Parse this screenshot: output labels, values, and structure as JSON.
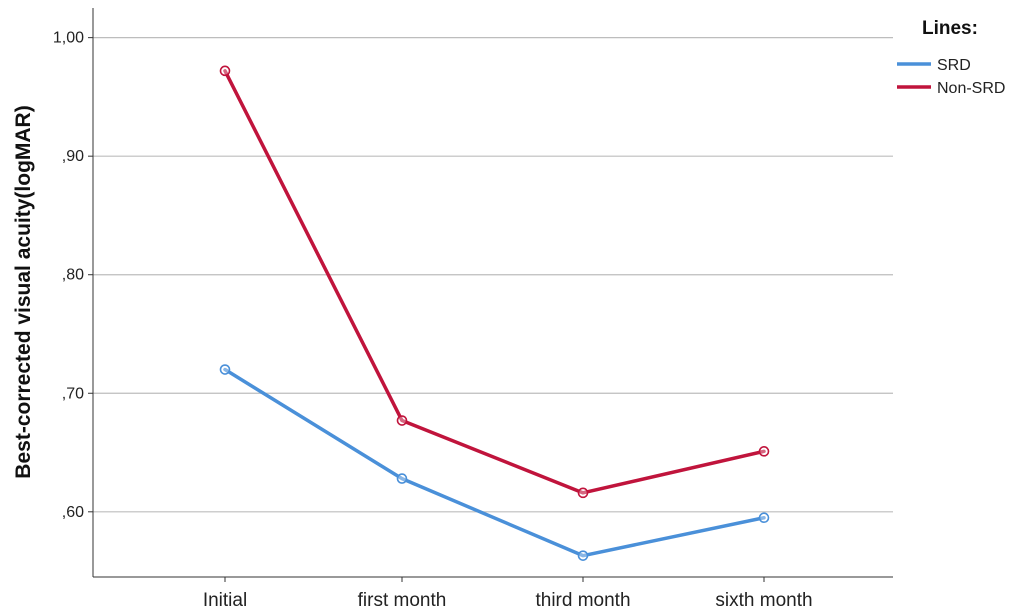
{
  "chart_data": {
    "type": "line",
    "categories": [
      "Initial",
      "first month",
      "third month",
      "sixth month"
    ],
    "series": [
      {
        "name": "SRD",
        "color": "#4a90d9",
        "values": [
          0.72,
          0.628,
          0.563,
          0.595
        ]
      },
      {
        "name": "Non-SRD",
        "color": "#c0143c",
        "values": [
          0.972,
          0.677,
          0.616,
          0.651
        ]
      }
    ],
    "ylabel": "Best-corrected visual acuity(logMAR)",
    "xlabel": "",
    "ylim": [
      0.545,
      1.025
    ],
    "yticks": [
      0.6,
      0.7,
      0.8,
      0.9,
      1.0
    ],
    "ytick_labels": [
      ",60",
      ",70",
      ",80",
      ",90",
      "1,00"
    ],
    "grid": "horizontal",
    "legend": {
      "title": "Lines:",
      "position": "top-right"
    }
  }
}
